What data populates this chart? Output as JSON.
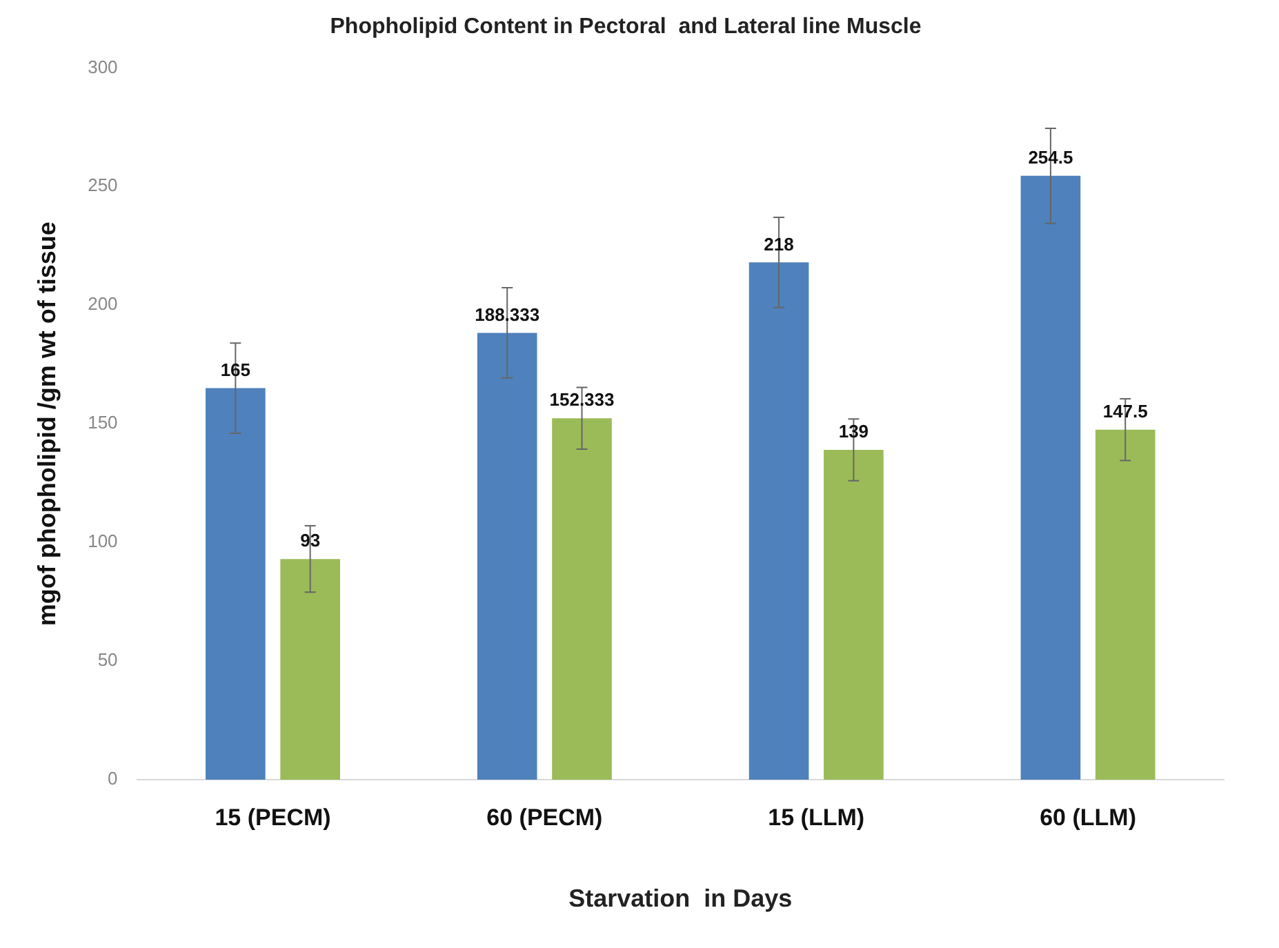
{
  "chart_data": {
    "type": "bar",
    "title": "Phopholipid Content in Pectoral  and Lateral line Muscle",
    "xlabel": "Starvation  in Days",
    "ylabel": "mgof phopholipid /gm wt of tissue",
    "categories": [
      "15 (PECM)",
      "60 (PECM)",
      "15 (LLM)",
      "60 (LLM)"
    ],
    "series": [
      {
        "color": "#4f81bd",
        "values": [
          165,
          188.333,
          218,
          254.5
        ],
        "errors": [
          19,
          19,
          19,
          20
        ]
      },
      {
        "color": "#9bbb59",
        "values": [
          93,
          152.333,
          139,
          147.5
        ],
        "errors": [
          14,
          13,
          13,
          13
        ]
      }
    ],
    "ylim": [
      0,
      300
    ],
    "yticks": [
      0,
      50,
      100,
      150,
      200,
      250,
      300
    ],
    "grid": false,
    "legend": false,
    "data_labels": true
  }
}
